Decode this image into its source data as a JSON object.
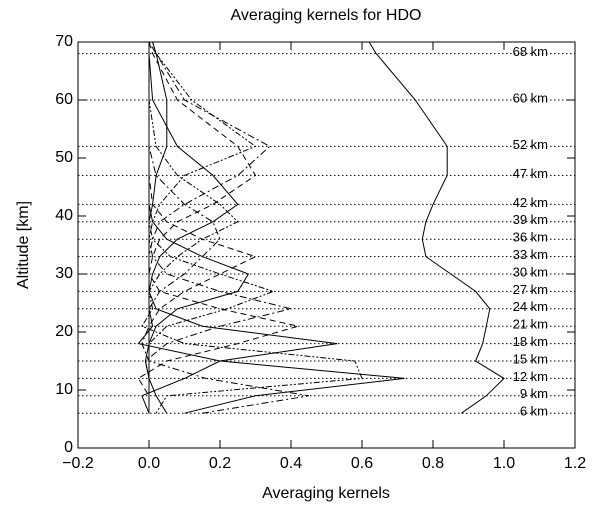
{
  "chart_data": {
    "type": "profile",
    "title": "Averaging kernels for HDO",
    "x_label": "Averaging kernels",
    "y_label": "Altitude [km]",
    "xlim": [
      -0.2,
      1.2
    ],
    "ylim": [
      0,
      70
    ],
    "xticks": [
      {
        "value": -0.2,
        "label": "−0.2"
      },
      {
        "value": 0,
        "label": "0.0"
      },
      0.2,
      0.4,
      0.6,
      0.8,
      {
        "value": 1,
        "label": "1.0"
      },
      1.2
    ],
    "yticks": [
      0,
      10,
      20,
      30,
      40,
      50,
      60,
      70
    ],
    "levels": [
      6,
      9,
      12,
      15,
      18,
      21,
      24,
      27,
      30,
      33,
      36,
      39,
      42,
      47,
      52,
      60,
      68
    ],
    "level_labels": [
      "6 km",
      "9 km",
      "12 km",
      "15 km",
      "18 km",
      "21 km",
      "24 km",
      "27 km",
      "30 km",
      "33 km",
      "36 km",
      "39 km",
      "42 km",
      "47 km",
      "52 km",
      "60 km",
      "68 km"
    ],
    "y": [
      6,
      9,
      12,
      15,
      18,
      21,
      24,
      27,
      30,
      33,
      36,
      39,
      42,
      47,
      52,
      60,
      68,
      70
    ],
    "series": [
      {
        "color": "#000000",
        "style": "solid",
        "values": [
          0.05,
          0.02,
          0,
          -0.01,
          0,
          0,
          0,
          0,
          0,
          0,
          0,
          0,
          0,
          0,
          0,
          0,
          0,
          0
        ]
      },
      {
        "color": "#000000",
        "style": "dashdot",
        "values": [
          0.15,
          0.45,
          0.16,
          0,
          -0.02,
          0,
          0,
          0,
          0,
          0,
          0,
          0,
          0,
          0,
          0,
          0,
          0,
          0
        ]
      },
      {
        "color": "#000000",
        "style": "solid",
        "values": [
          0.1,
          0.3,
          0.72,
          0.2,
          -0.03,
          0.01,
          0,
          0,
          0,
          0,
          0,
          0,
          0,
          0,
          0,
          0,
          0,
          0
        ]
      },
      {
        "color": "#000000",
        "style": "dotdash",
        "values": [
          0.02,
          0.05,
          0.6,
          0.58,
          0.1,
          -0.02,
          0.01,
          0,
          0,
          0,
          0,
          0,
          0,
          0,
          0,
          0,
          0,
          0
        ]
      },
      {
        "color": "#000000",
        "style": "solid",
        "values": [
          0,
          -0.02,
          0.1,
          0.2,
          0.53,
          0.15,
          0.02,
          0,
          0,
          0,
          0,
          0,
          0,
          0,
          0,
          0,
          0,
          0
        ]
      },
      {
        "color": "#000000",
        "style": "dashed",
        "values": [
          0,
          0,
          -0.03,
          0.05,
          0.25,
          0.42,
          0.2,
          0.03,
          0,
          0,
          0,
          0,
          0,
          0,
          0,
          0,
          0,
          0
        ]
      },
      {
        "color": "#000000",
        "style": "dashdot",
        "values": [
          0,
          0,
          0,
          -0.01,
          0.05,
          0.2,
          0.4,
          0.2,
          0.05,
          0.01,
          0,
          0,
          0,
          0,
          0,
          0,
          0,
          0
        ]
      },
      {
        "color": "#000000",
        "style": "dotdash",
        "values": [
          0,
          0,
          0,
          0,
          0,
          0.05,
          0.22,
          0.35,
          0.2,
          0.06,
          0.01,
          0,
          0,
          0,
          0,
          0,
          0,
          0
        ]
      },
      {
        "color": "#000000",
        "style": "solid",
        "values": [
          0,
          0,
          0,
          0,
          0,
          0.02,
          0.08,
          0.25,
          0.28,
          0.15,
          0.05,
          0.01,
          0,
          0,
          0,
          0,
          0,
          0
        ]
      },
      {
        "color": "#000000",
        "style": "dashed",
        "values": [
          0,
          0,
          0,
          0,
          0,
          0,
          0.03,
          0.1,
          0.2,
          0.3,
          0.15,
          0.05,
          0.01,
          0,
          0,
          0,
          0,
          0
        ]
      },
      {
        "color": "#000000",
        "style": "dashdot",
        "values": [
          0,
          0,
          0,
          0,
          0,
          0,
          0,
          0.03,
          0.1,
          0.15,
          0.2,
          0.18,
          0.1,
          0.02,
          0,
          0,
          0,
          0
        ]
      },
      {
        "color": "#000000",
        "style": "dotdash",
        "values": [
          0,
          0,
          0,
          0,
          0,
          0,
          0,
          0,
          0.03,
          0.08,
          0.15,
          0.25,
          0.2,
          0.08,
          0.02,
          0,
          0,
          0
        ]
      },
      {
        "color": "#000000",
        "style": "solid",
        "values": [
          0,
          0,
          0,
          0,
          0,
          0,
          0,
          0,
          0.01,
          0.03,
          0.08,
          0.18,
          0.25,
          0.18,
          0.08,
          0.01,
          0,
          0
        ]
      },
      {
        "color": "#000000",
        "style": "dashed",
        "values": [
          0,
          0,
          0,
          0,
          0,
          0,
          0,
          0,
          0,
          0.01,
          0.03,
          0.08,
          0.18,
          0.3,
          0.25,
          0.08,
          0.01,
          0
        ]
      },
      {
        "color": "#000000",
        "style": "dashdot",
        "values": [
          0,
          0,
          0,
          0,
          0,
          0,
          0,
          0,
          0,
          0,
          0.01,
          0.03,
          0.1,
          0.25,
          0.34,
          0.1,
          0.02,
          0
        ]
      },
      {
        "color": "#000000",
        "style": "dotdash",
        "values": [
          0,
          0,
          0,
          0,
          0,
          0,
          0,
          0,
          0,
          0,
          0,
          0.01,
          0.03,
          0.1,
          0.3,
          0.12,
          0.02,
          0.01
        ]
      },
      {
        "color": "#000000",
        "style": "solid",
        "values": [
          0,
          0,
          0,
          0,
          0,
          0,
          0,
          0,
          0,
          0,
          0,
          0,
          0.01,
          0.02,
          0.05,
          0.05,
          0.02,
          0.01
        ]
      },
      {
        "color": "#000000",
        "style": "solid",
        "values": [
          0.88,
          0.95,
          1.0,
          0.92,
          0.94,
          0.95,
          0.96,
          0.92,
          0.85,
          0.78,
          0.77,
          0.78,
          0.8,
          0.84,
          0.84,
          0.75,
          0.64,
          0.62
        ]
      }
    ]
  }
}
